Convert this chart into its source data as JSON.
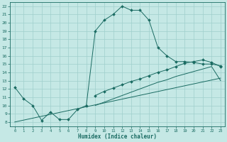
{
  "xlabel": "Humidex (Indice chaleur)",
  "bg_color": "#c5e8e5",
  "grid_color": "#9fcfcc",
  "line_color": "#1a6b62",
  "xlim": [
    -0.5,
    23.5
  ],
  "ylim": [
    7.5,
    22.5
  ],
  "xticks": [
    0,
    1,
    2,
    3,
    4,
    5,
    6,
    7,
    8,
    9,
    10,
    11,
    12,
    13,
    14,
    15,
    16,
    17,
    18,
    19,
    20,
    21,
    22,
    23
  ],
  "yticks": [
    8,
    9,
    10,
    11,
    12,
    13,
    14,
    15,
    16,
    17,
    18,
    19,
    20,
    21,
    22
  ],
  "curve1_x": [
    0,
    1,
    2,
    3,
    4,
    5,
    6,
    7,
    8,
    9,
    10,
    11,
    12,
    13,
    14,
    15,
    16,
    17,
    18,
    19,
    20,
    21,
    22,
    23
  ],
  "curve1_y": [
    12.2,
    10.8,
    10.0,
    8.2,
    9.2,
    8.3,
    8.3,
    9.5,
    10.0,
    19.0,
    20.3,
    21.0,
    22.0,
    21.5,
    21.5,
    20.3,
    17.0,
    16.0,
    15.3,
    15.3,
    15.2,
    15.0,
    15.0,
    14.8
  ],
  "curve2_x": [
    0,
    23
  ],
  "curve2_y": [
    8.0,
    13.3
  ],
  "curve3_x": [
    9,
    10,
    11,
    12,
    13,
    14,
    15,
    16,
    17,
    18,
    19,
    20,
    21,
    22,
    23
  ],
  "curve3_y": [
    11.2,
    11.7,
    12.1,
    12.5,
    12.9,
    13.2,
    13.6,
    14.0,
    14.3,
    14.7,
    15.1,
    15.3,
    15.5,
    15.2,
    14.7
  ],
  "curve4_x": [
    9,
    10,
    11,
    12,
    13,
    14,
    15,
    16,
    17,
    18,
    19,
    20,
    21,
    22,
    23
  ],
  "curve4_y": [
    10.0,
    10.4,
    10.8,
    11.2,
    11.6,
    12.0,
    12.4,
    12.8,
    13.1,
    13.5,
    13.8,
    14.1,
    14.4,
    14.7,
    13.0
  ]
}
